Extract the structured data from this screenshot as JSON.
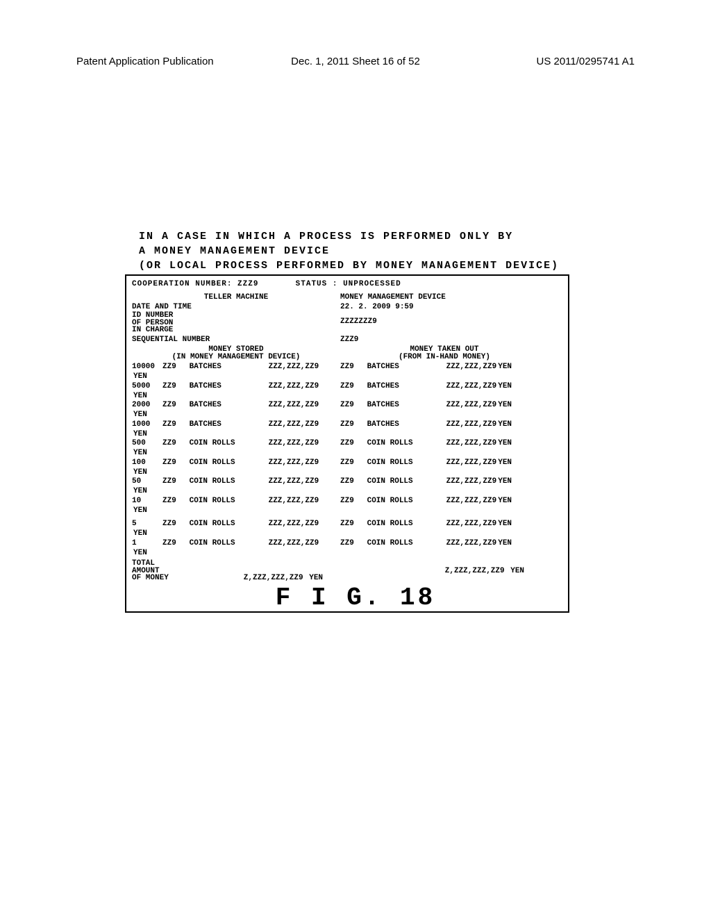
{
  "header": {
    "left": "Patent Application Publication",
    "center": "Dec. 1, 2011   Sheet 16 of 52",
    "right": "US 2011/0295741 A1"
  },
  "precaption": {
    "line1": "IN  A  CASE  IN  WHICH  A  PROCESS  IS  PERFORMED  ONLY  BY",
    "line2": "A  MONEY  MANAGEMENT  DEVICE",
    "line3": "(OR  LOCAL  PROCESS  PERFORMED  BY  MONEY  MANAGEMENT  DEVICE)"
  },
  "coop": {
    "label": "COOPERATION  NUMBER:",
    "value": "ZZZ9",
    "status_label": "STATUS :",
    "status_value": "UNPROCESSED"
  },
  "col_headers": {
    "left": "TELLER  MACHINE",
    "right": "MONEY  MANAGEMENT  DEVICE"
  },
  "rows": {
    "date_label": "DATE  AND  TIME",
    "date_right": "22. 2. 2009    9:59",
    "id_label_l1": "ID  NUMBER",
    "id_label_l2": "OF  PERSON",
    "id_label_l3": "IN  CHARGE",
    "id_right": "ZZZZZZZ9",
    "seq_label": "SEQUENTIAL  NUMBER",
    "seq_right": "ZZZ9",
    "stored_l1": "MONEY  STORED",
    "stored_l2": "(IN  MONEY  MANAGEMENT  DEVICE)",
    "taken_l1": "MONEY  TAKEN  OUT",
    "taken_l2": "(FROM  IN-HAND  MONEY)"
  },
  "denoms_a": [
    "10000",
    "5000",
    "2000",
    "1000",
    "500",
    "100",
    "50",
    "10"
  ],
  "denoms_b": [
    "5",
    "1"
  ],
  "units_a": [
    "BATCHES",
    "BATCHES",
    "BATCHES",
    "BATCHES",
    "COIN ROLLS",
    "COIN ROLLS",
    "COIN ROLLS",
    "COIN ROLLS"
  ],
  "units_b": [
    "COIN ROLLS",
    "COIN ROLLS"
  ],
  "qty": "ZZ9",
  "amt": "ZZZ,ZZZ,ZZ9",
  "yen": "YEN",
  "total": {
    "label_l1": "TOTAL",
    "label_l2": "AMOUNT",
    "label_l3": "OF  MONEY",
    "amount": "Z,ZZZ,ZZZ,ZZ9",
    "yen": "YEN"
  },
  "fig": "F I G. 18"
}
